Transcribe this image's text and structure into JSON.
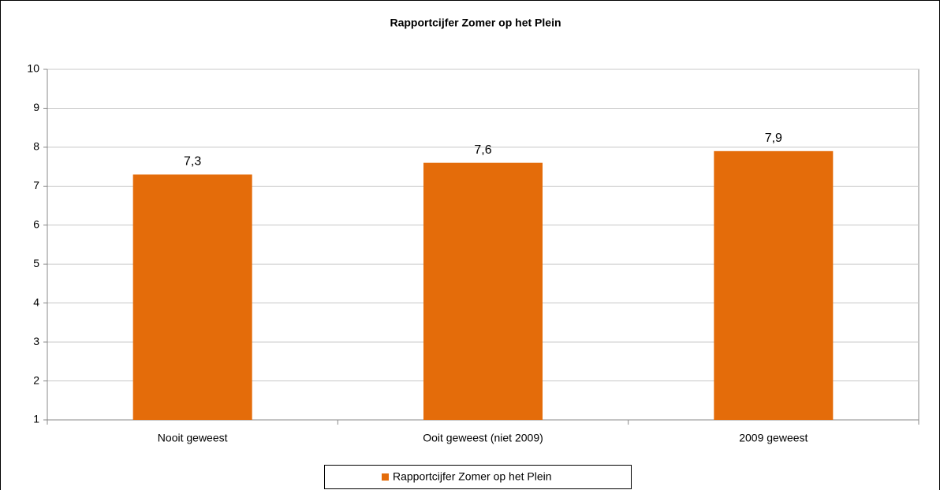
{
  "chart_data": {
    "type": "bar",
    "title": "Rapportcijfer Zomer op het Plein",
    "categories": [
      "Nooit geweest",
      "Ooit geweest (niet 2009)",
      "2009 geweest"
    ],
    "series": [
      {
        "name": "Rapportcijfer Zomer op het Plein",
        "color": "#e46c0a",
        "values": [
          7.3,
          7.6,
          7.9
        ],
        "value_labels": [
          "7,3",
          "7,6",
          "7,9"
        ]
      }
    ],
    "ylim": [
      1,
      10
    ],
    "yticks": [
      1,
      2,
      3,
      4,
      5,
      6,
      7,
      8,
      9,
      10
    ],
    "grid": true,
    "legend": "bottom"
  }
}
